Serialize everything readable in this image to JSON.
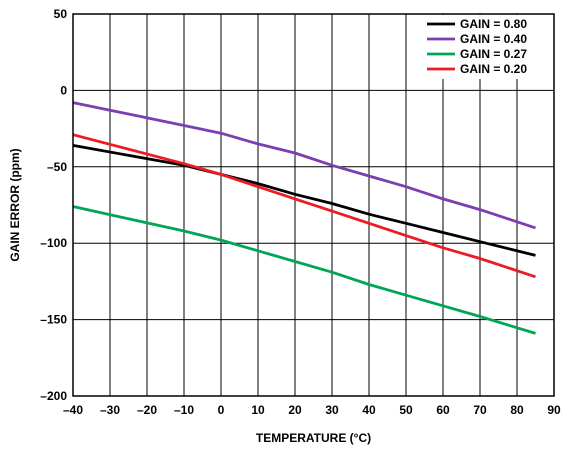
{
  "chart_data": {
    "type": "line",
    "xlabel": "TEMPERATURE (°C)",
    "ylabel": "GAIN ERROR (ppm)",
    "xlim": [
      -40,
      90
    ],
    "ylim": [
      -200,
      50
    ],
    "x_ticks": [
      -40,
      -30,
      -20,
      -10,
      0,
      10,
      20,
      30,
      40,
      50,
      60,
      70,
      80,
      90
    ],
    "x_tick_labels": [
      "–40",
      "–30",
      "–20",
      "–10",
      "0",
      "10",
      "20",
      "30",
      "40",
      "50",
      "60",
      "70",
      "80",
      "90"
    ],
    "y_ticks": [
      50,
      0,
      -50,
      -100,
      -150,
      -200
    ],
    "y_tick_labels": [
      "50",
      "0",
      "–50",
      "–100",
      "–150",
      "–200"
    ],
    "grid": true,
    "legend_position": "top-right",
    "series": [
      {
        "name": "GAIN = 0.80",
        "color": "#000000",
        "x": [
          -40,
          -10,
          0,
          10,
          20,
          30,
          40,
          50,
          60,
          70,
          85
        ],
        "y": [
          -36,
          -49,
          -55,
          -61,
          -68,
          -74,
          -81,
          -87,
          -93,
          -99,
          -108
        ]
      },
      {
        "name": "GAIN = 0.40",
        "color": "#7a3fb0",
        "x": [
          -40,
          -10,
          0,
          10,
          20,
          30,
          40,
          50,
          60,
          70,
          85
        ],
        "y": [
          -8,
          -23,
          -28,
          -35,
          -41,
          -49,
          -56,
          -63,
          -71,
          -78,
          -90
        ]
      },
      {
        "name": "GAIN = 0.27",
        "color": "#00a651",
        "x": [
          -40,
          -10,
          0,
          10,
          20,
          30,
          40,
          50,
          60,
          70,
          85
        ],
        "y": [
          -76,
          -92,
          -98,
          -105,
          -112,
          -119,
          -127,
          -134,
          -141,
          -148,
          -159
        ]
      },
      {
        "name": "GAIN = 0.20",
        "color": "#ed1c24",
        "x": [
          -40,
          -10,
          0,
          10,
          20,
          30,
          40,
          50,
          60,
          70,
          85
        ],
        "y": [
          -29,
          -48,
          -55,
          -63,
          -71,
          -79,
          -87,
          -95,
          -103,
          -110,
          -122
        ]
      }
    ]
  }
}
